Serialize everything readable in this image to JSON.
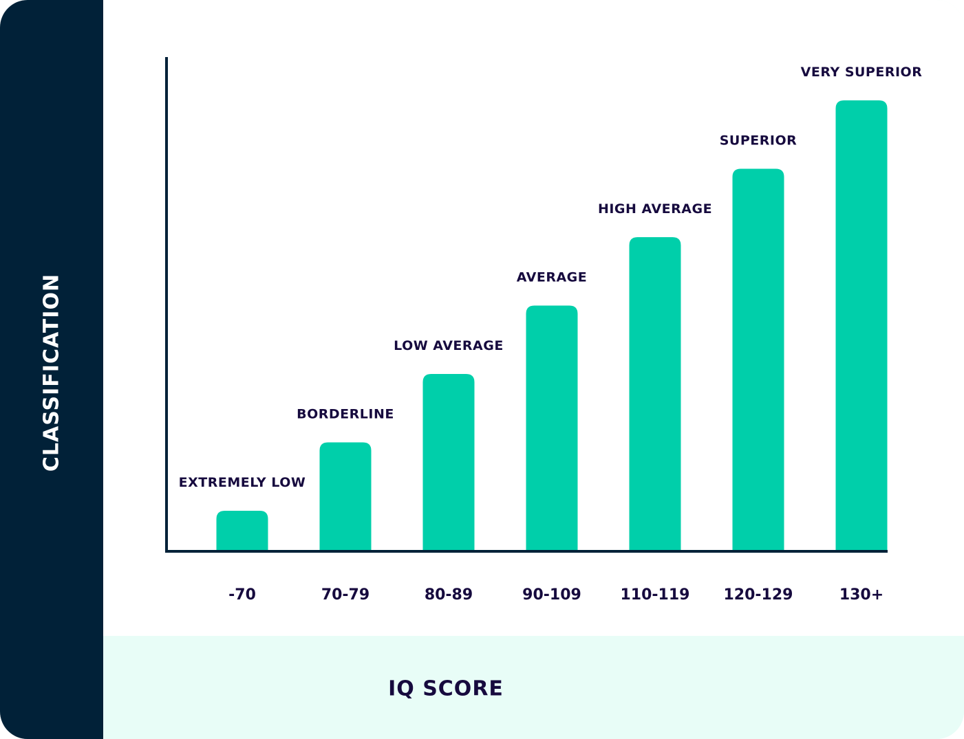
{
  "chart_data": {
    "type": "bar",
    "xlabel": "IQ SCORE",
    "ylabel": "CLASSIFICATION",
    "categories": [
      "-70",
      "70-79",
      "80-89",
      "90-109",
      "110-119",
      "120-129",
      "130+"
    ],
    "bar_labels": [
      "EXTREMELY LOW",
      "BORDERLINE",
      "LOW AVERAGE",
      "AVERAGE",
      "HIGH AVERAGE",
      "SUPERIOR",
      "VERY SUPERIOR"
    ],
    "values": [
      1,
      2,
      3,
      4,
      5,
      6,
      7
    ],
    "ylim": [
      0,
      7
    ],
    "grid": false,
    "bar_color": "#00cfaa",
    "axis_color": "#012138",
    "text_color": "#160a3e"
  },
  "colors": {
    "sidebar": "#012138",
    "panel": "#ffffff",
    "band": "#e8fdf7"
  }
}
